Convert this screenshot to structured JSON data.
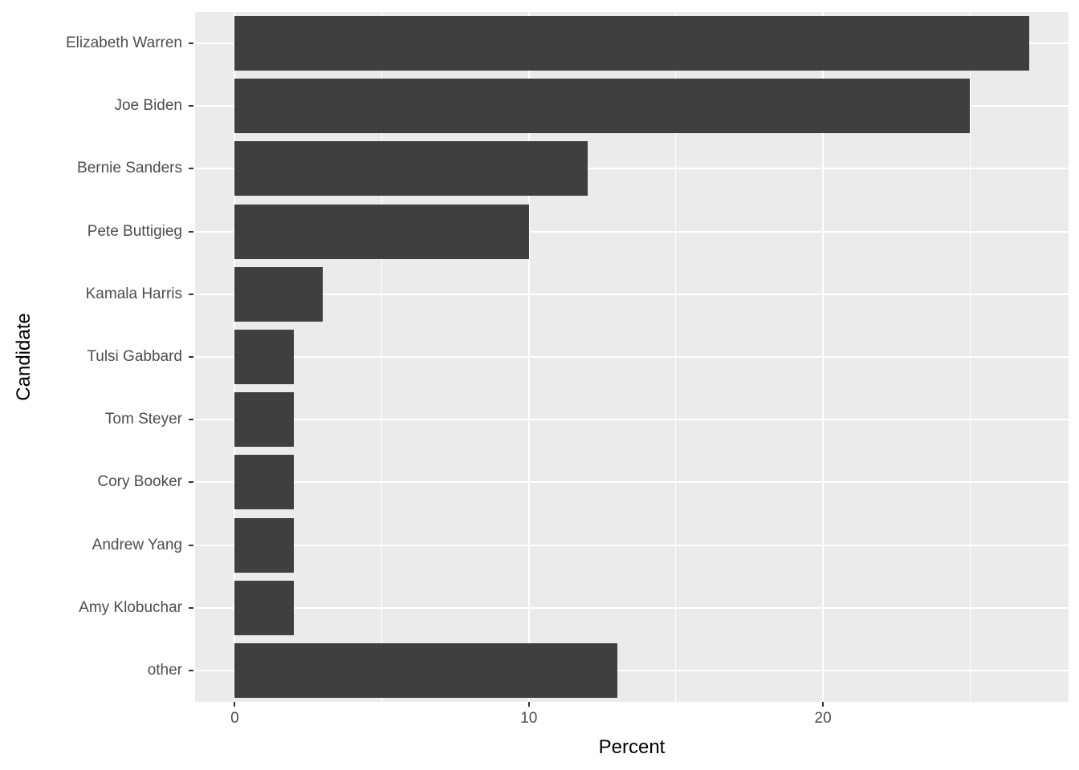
{
  "chart_data": {
    "type": "bar",
    "orientation": "horizontal",
    "title": "",
    "xlabel": "Percent",
    "ylabel": "Candidate",
    "categories": [
      "Elizabeth Warren",
      "Joe Biden",
      "Bernie Sanders",
      "Pete Buttigieg",
      "Kamala Harris",
      "Tulsi Gabbard",
      "Tom Steyer",
      "Cory Booker",
      "Andrew Yang",
      "Amy Klobuchar",
      "other"
    ],
    "values": [
      27,
      25,
      12,
      10,
      3,
      2,
      2,
      2,
      2,
      2,
      13
    ],
    "xlim": [
      -1.35,
      28.35
    ],
    "x_major_ticks": [
      0,
      10,
      20
    ],
    "x_minor_ticks": [
      5,
      15,
      25
    ],
    "grid": true,
    "legend": false,
    "bar_width_fraction": 0.87,
    "colors": {
      "bar": "#3f3f3f",
      "panel_background": "#ebebeb",
      "gridline": "#ffffff",
      "tick_label": "#4d4d4d",
      "tick_mark": "#333333",
      "axis_title": "#000000",
      "page_background": "#ffffff"
    }
  }
}
